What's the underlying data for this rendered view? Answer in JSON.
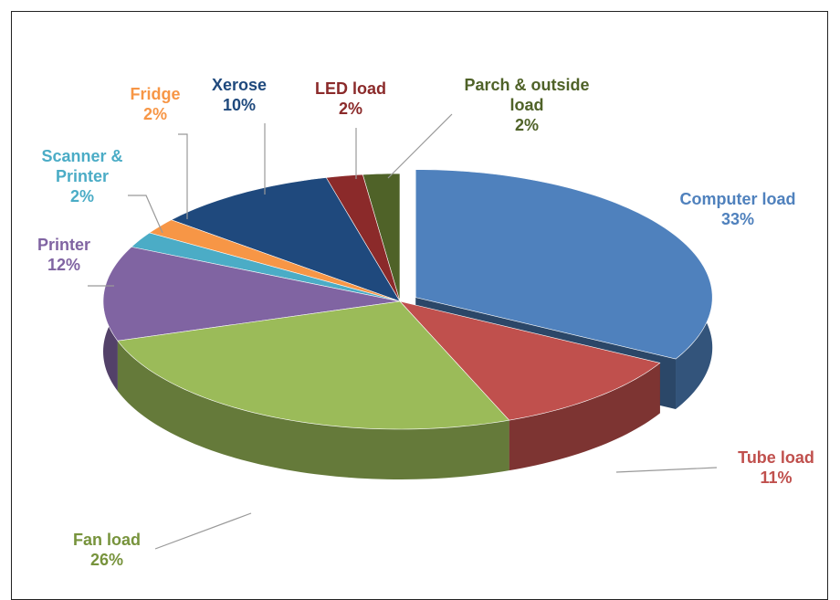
{
  "chart_data": {
    "type": "pie",
    "categories": [
      "Computer load",
      "Tube load",
      "Fan load",
      "Printer",
      "Scanner & Printer",
      "Fridge",
      "Xerose",
      "LED load",
      "Parch & outside load"
    ],
    "values": [
      33,
      11,
      26,
      12,
      2,
      2,
      10,
      2,
      2
    ],
    "value_labels": [
      "33%",
      "11%",
      "26%",
      "12%",
      "2%",
      "2%",
      "10%",
      "2%",
      "2%"
    ],
    "colors": [
      "#4f81bd",
      "#c0504d",
      "#9bbb59",
      "#8064a2",
      "#4bacc6",
      "#f79646",
      "#1f497d",
      "#8b2a2a",
      "#4f6228"
    ]
  }
}
